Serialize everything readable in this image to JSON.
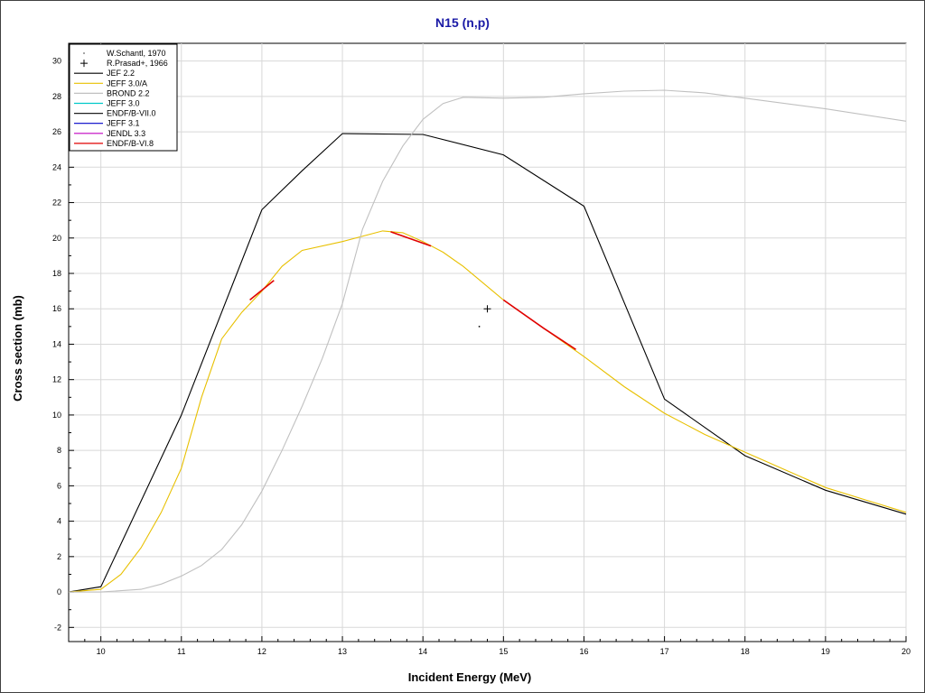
{
  "chart_data": {
    "type": "line",
    "title": "N15 (n,p)",
    "xlabel": "Incident Energy (MeV)",
    "ylabel": "Cross section (mb)",
    "xlim": [
      9.6,
      20
    ],
    "ylim": [
      -2.8,
      31
    ],
    "x_ticks": [
      10,
      11,
      12,
      13,
      14,
      15,
      16,
      17,
      18,
      19,
      20
    ],
    "y_ticks": [
      -2,
      0,
      2,
      4,
      6,
      8,
      10,
      12,
      14,
      16,
      18,
      20,
      22,
      24,
      26,
      28,
      30
    ],
    "grid": true,
    "legend_position": "top-left",
    "series": [
      {
        "name": "W.Schantl, 1970",
        "kind": "points",
        "marker": "dot",
        "color": "#000000",
        "points": [
          [
            14.7,
            15.0
          ]
        ]
      },
      {
        "name": "R.Prasad+, 1966",
        "kind": "points",
        "marker": "plus",
        "color": "#000000",
        "points": [
          [
            14.8,
            16.0
          ]
        ]
      },
      {
        "name": "JEF 2.2",
        "kind": "line",
        "color": "#000000",
        "points": [
          [
            9.6,
            0.0
          ],
          [
            10.0,
            0.3
          ],
          [
            11.0,
            10.0
          ],
          [
            12.0,
            21.6
          ],
          [
            12.5,
            23.8
          ],
          [
            13.0,
            25.9
          ],
          [
            14.0,
            25.85
          ],
          [
            15.0,
            24.7
          ],
          [
            16.0,
            21.8
          ],
          [
            17.0,
            10.9
          ],
          [
            18.0,
            7.7
          ],
          [
            19.0,
            5.75
          ],
          [
            20.0,
            4.4
          ]
        ]
      },
      {
        "name": "JEFF 3.0/A",
        "kind": "line",
        "color": "#e8c000",
        "points": [
          [
            9.6,
            0.0
          ],
          [
            10.0,
            0.15
          ],
          [
            10.25,
            1.0
          ],
          [
            10.5,
            2.5
          ],
          [
            10.75,
            4.5
          ],
          [
            11.0,
            7.0
          ],
          [
            11.25,
            11.0
          ],
          [
            11.5,
            14.3
          ],
          [
            11.75,
            15.8
          ],
          [
            12.0,
            17.0
          ],
          [
            12.25,
            18.4
          ],
          [
            12.5,
            19.3
          ],
          [
            13.0,
            19.8
          ],
          [
            13.5,
            20.4
          ],
          [
            13.75,
            20.3
          ],
          [
            14.0,
            19.8
          ],
          [
            14.25,
            19.2
          ],
          [
            14.5,
            18.4
          ],
          [
            15.0,
            16.5
          ],
          [
            15.5,
            14.9
          ],
          [
            16.0,
            13.3
          ],
          [
            16.5,
            11.6
          ],
          [
            17.0,
            10.1
          ],
          [
            17.5,
            8.9
          ],
          [
            18.0,
            7.9
          ],
          [
            18.5,
            6.9
          ],
          [
            19.0,
            5.9
          ],
          [
            19.5,
            5.2
          ],
          [
            20.0,
            4.5
          ]
        ]
      },
      {
        "name": "BROND 2.2",
        "kind": "line",
        "color": "#c0c0c0",
        "points": [
          [
            9.6,
            0.0
          ],
          [
            10.0,
            0.0
          ],
          [
            10.5,
            0.15
          ],
          [
            10.75,
            0.45
          ],
          [
            11.0,
            0.9
          ],
          [
            11.25,
            1.5
          ],
          [
            11.5,
            2.4
          ],
          [
            11.75,
            3.8
          ],
          [
            12.0,
            5.7
          ],
          [
            12.25,
            8.0
          ],
          [
            12.5,
            10.5
          ],
          [
            12.75,
            13.2
          ],
          [
            13.0,
            16.3
          ],
          [
            13.25,
            20.5
          ],
          [
            13.5,
            23.2
          ],
          [
            13.75,
            25.2
          ],
          [
            14.0,
            26.7
          ],
          [
            14.25,
            27.6
          ],
          [
            14.5,
            27.95
          ],
          [
            15.0,
            27.9
          ],
          [
            15.5,
            27.95
          ],
          [
            16.0,
            28.15
          ],
          [
            16.5,
            28.3
          ],
          [
            17.0,
            28.35
          ],
          [
            17.5,
            28.2
          ],
          [
            18.0,
            27.9
          ],
          [
            19.0,
            27.3
          ],
          [
            20.0,
            26.6
          ]
        ]
      },
      {
        "name": "JEFF 3.0",
        "kind": "line",
        "color": "#00c8c8",
        "points": []
      },
      {
        "name": "ENDF/B-VII.0",
        "kind": "line",
        "color": "#202020",
        "points": []
      },
      {
        "name": "JEFF 3.1",
        "kind": "line",
        "color": "#0000c8",
        "points": []
      },
      {
        "name": "JENDL 3.3",
        "kind": "line",
        "color": "#c000c0",
        "points": []
      },
      {
        "name": "ENDF/B-VI.8",
        "kind": "segments",
        "color": "#e00000",
        "segments": [
          [
            [
              11.85,
              16.5
            ],
            [
              12.15,
              17.6
            ]
          ],
          [
            [
              13.6,
              20.35
            ],
            [
              14.1,
              19.55
            ]
          ],
          [
            [
              15.0,
              16.5
            ],
            [
              15.5,
              14.9
            ],
            [
              15.9,
              13.7
            ]
          ]
        ]
      }
    ]
  }
}
